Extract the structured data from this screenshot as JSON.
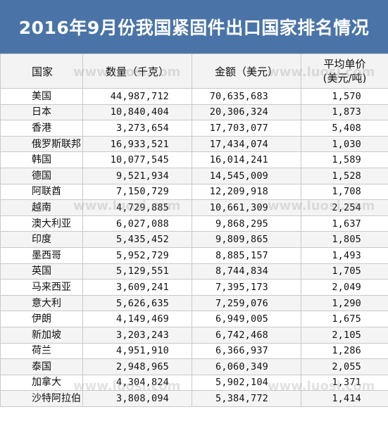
{
  "title": "2016年9月份我国紧固件出口国家排名情况",
  "headers": {
    "country": "国家",
    "quantity": "数量（千克）",
    "amount": "金额（美元）",
    "unit_price_line1": "平均单价",
    "unit_price_line2": "(美元/吨)"
  },
  "watermark": "www.luosi.com",
  "rows": [
    {
      "country": "美国",
      "quantity": "44,987,712",
      "amount": "70,635,683",
      "price": "1,570"
    },
    {
      "country": "日本",
      "quantity": "10,840,404",
      "amount": "20,306,324",
      "price": "1,873"
    },
    {
      "country": "香港",
      "quantity": "3,273,654",
      "amount": "17,703,077",
      "price": "5,408"
    },
    {
      "country": "俄罗斯联邦",
      "quantity": "16,933,521",
      "amount": "17,434,074",
      "price": "1,030"
    },
    {
      "country": "韩国",
      "quantity": "10,077,545",
      "amount": "16,014,241",
      "price": "1,589"
    },
    {
      "country": "德国",
      "quantity": "9,521,934",
      "amount": "14,545,009",
      "price": "1,528"
    },
    {
      "country": "阿联酋",
      "quantity": "7,150,729",
      "amount": "12,209,918",
      "price": "1,708"
    },
    {
      "country": "越南",
      "quantity": "4,729,885",
      "amount": "10,661,309",
      "price": "2,254"
    },
    {
      "country": "澳大利亚",
      "quantity": "6,027,088",
      "amount": "9,868,295",
      "price": "1,637"
    },
    {
      "country": "印度",
      "quantity": "5,435,452",
      "amount": "9,809,865",
      "price": "1,805"
    },
    {
      "country": "墨西哥",
      "quantity": "5,952,729",
      "amount": "8,885,157",
      "price": "1,493"
    },
    {
      "country": "英国",
      "quantity": "5,129,551",
      "amount": "8,744,834",
      "price": "1,705"
    },
    {
      "country": "马来西亚",
      "quantity": "3,609,241",
      "amount": "7,395,173",
      "price": "2,049"
    },
    {
      "country": "意大利",
      "quantity": "5,626,635",
      "amount": "7,259,076",
      "price": "1,290"
    },
    {
      "country": "伊朗",
      "quantity": "4,149,469",
      "amount": "6,949,005",
      "price": "1,675"
    },
    {
      "country": "新加坡",
      "quantity": "3,203,243",
      "amount": "6,742,468",
      "price": "2,105"
    },
    {
      "country": "荷兰",
      "quantity": "4,951,910",
      "amount": "6,366,937",
      "price": "1,286"
    },
    {
      "country": "泰国",
      "quantity": "2,948,965",
      "amount": "6,060,349",
      "price": "2,055"
    },
    {
      "country": "加拿大",
      "quantity": "4,304,824",
      "amount": "5,902,104",
      "price": "1,371"
    },
    {
      "country": "沙特阿拉伯",
      "quantity": "3,808,094",
      "amount": "5,384,772",
      "price": "1,414"
    }
  ]
}
